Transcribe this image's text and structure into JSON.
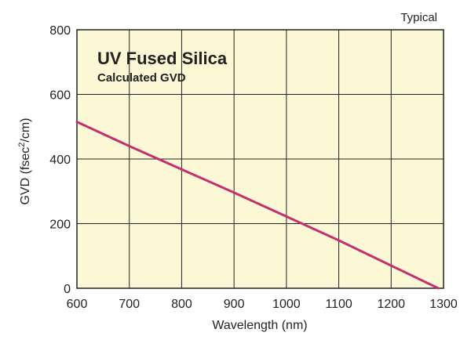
{
  "chart_data": {
    "type": "line",
    "title": "UV Fused Silica",
    "subtitle": "Calculated GVD",
    "annotation": "Typical",
    "xlabel": "Wavelength (nm)",
    "ylabel_main": "GVD (fsec",
    "ylabel_sup": "2",
    "ylabel_tail": "/cm)",
    "xlim": [
      600,
      1300
    ],
    "ylim": [
      0,
      800
    ],
    "xticks": [
      "600",
      "700",
      "800",
      "900",
      "1000",
      "1100",
      "1200",
      "1300"
    ],
    "yticks": [
      "0",
      "200",
      "400",
      "600",
      "800"
    ],
    "grid": true,
    "colors": {
      "background": "#fcf7d4",
      "grid": "#222222",
      "line": "#c2306f"
    },
    "series": [
      {
        "x": [
          600,
          700,
          800,
          900,
          1000,
          1100,
          1200,
          1290
        ],
        "values": [
          515,
          440,
          368,
          296,
          222,
          148,
          70,
          0
        ]
      }
    ]
  }
}
